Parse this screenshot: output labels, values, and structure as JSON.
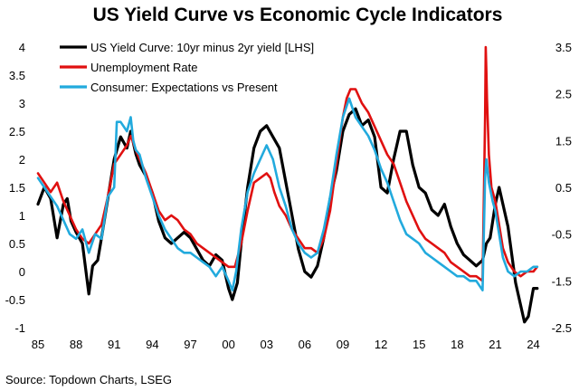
{
  "chart_data": {
    "type": "line",
    "title": "US Yield Curve vs Economic Cycle Indicators",
    "source": "Source: Topdown Charts, LSEG",
    "x_ticks": [
      "85",
      "88",
      "91",
      "94",
      "97",
      "00",
      "03",
      "06",
      "09",
      "12",
      "15",
      "18",
      "21",
      "24"
    ],
    "x_tick_years": [
      1985,
      1988,
      1991,
      1994,
      1997,
      2000,
      2003,
      2006,
      2009,
      2012,
      2015,
      2018,
      2021,
      2024
    ],
    "xlim": [
      1985,
      2024.6
    ],
    "y_left": {
      "ticks": [
        "4",
        "3.5",
        "3",
        "2.5",
        "2",
        "1.5",
        "1",
        "0.5",
        "0",
        "-0.5",
        "-1"
      ],
      "range": [
        -1,
        4
      ]
    },
    "y_right": {
      "ticks": [
        "3.5",
        "2.5",
        "1.5",
        "0.5",
        "-0.5",
        "-1.5",
        "-2.5"
      ],
      "range": [
        -2.5,
        3.5
      ]
    },
    "legend": {
      "placement": "top-left"
    },
    "series": [
      {
        "name": "US Yield Curve: 10yr minus 2yr yield [LHS]",
        "axis": "left",
        "color": "#000000",
        "x": [
          1985,
          1985.5,
          1986,
          1986.5,
          1987,
          1987.3,
          1987.6,
          1988,
          1988.5,
          1989,
          1989.3,
          1989.7,
          1990,
          1990.5,
          1991,
          1991.5,
          1992,
          1992.3,
          1992.7,
          1993,
          1993.5,
          1994,
          1994.5,
          1995,
          1995.5,
          1996,
          1996.5,
          1997,
          1997.5,
          1998,
          1998.5,
          1999,
          1999.5,
          2000,
          2000.3,
          2000.7,
          2001,
          2001.5,
          2002,
          2002.5,
          2003,
          2003.5,
          2004,
          2004.5,
          2005,
          2005.5,
          2006,
          2006.5,
          2007,
          2007.5,
          2008,
          2008.5,
          2009,
          2009.5,
          2010,
          2010.5,
          2011,
          2011.5,
          2012,
          2012.5,
          2013,
          2013.5,
          2014,
          2014.5,
          2015,
          2015.5,
          2016,
          2016.5,
          2017,
          2017.5,
          2018,
          2018.5,
          2019,
          2019.5,
          2020,
          2020.3,
          2020.6,
          2021,
          2021.3,
          2021.6,
          2022,
          2022.3,
          2022.6,
          2023,
          2023.3,
          2023.6,
          2024,
          2024.3
        ],
        "values": [
          1.2,
          1.5,
          1.3,
          0.6,
          1.2,
          1.3,
          0.9,
          0.7,
          0.5,
          -0.4,
          0.1,
          0.2,
          0.6,
          1.3,
          2.0,
          2.4,
          2.2,
          2.5,
          2.1,
          1.9,
          1.7,
          1.4,
          0.9,
          0.6,
          0.5,
          0.6,
          0.7,
          0.6,
          0.4,
          0.2,
          0.1,
          0.3,
          0.2,
          -0.3,
          -0.5,
          -0.2,
          0.5,
          1.5,
          2.2,
          2.5,
          2.6,
          2.4,
          2.2,
          1.6,
          1.0,
          0.4,
          0.0,
          -0.1,
          0.1,
          0.6,
          1.3,
          1.8,
          2.5,
          2.8,
          2.9,
          2.6,
          2.7,
          2.4,
          1.5,
          1.4,
          2.0,
          2.5,
          2.5,
          1.9,
          1.5,
          1.4,
          1.1,
          1.0,
          1.2,
          0.8,
          0.5,
          0.3,
          0.2,
          0.1,
          0.2,
          0.5,
          0.6,
          1.2,
          1.5,
          1.2,
          0.8,
          0.3,
          -0.2,
          -0.6,
          -0.9,
          -0.8,
          -0.3,
          -0.3
        ]
      },
      {
        "name": "Unemployment Rate",
        "axis": "right",
        "color": "#e01010",
        "x": [
          1985,
          1985.5,
          1986,
          1986.5,
          1987,
          1987.5,
          1988,
          1988.5,
          1989,
          1989.5,
          1990,
          1990.5,
          1991,
          1991.5,
          1992,
          1992.3,
          1992.7,
          1993,
          1993.5,
          1994,
          1994.5,
          1995,
          1995.5,
          1996,
          1996.5,
          1997,
          1997.5,
          1998,
          1998.5,
          1999,
          1999.5,
          2000,
          2000.5,
          2001,
          2001.5,
          2002,
          2002.5,
          2003,
          2003.3,
          2003.6,
          2004,
          2004.5,
          2005,
          2005.5,
          2006,
          2006.5,
          2007,
          2007.5,
          2008,
          2008.5,
          2009,
          2009.3,
          2009.6,
          2010,
          2010.5,
          2011,
          2011.5,
          2012,
          2012.5,
          2013,
          2013.5,
          2014,
          2014.5,
          2015,
          2015.5,
          2016,
          2016.5,
          2017,
          2017.5,
          2018,
          2018.5,
          2019,
          2019.5,
          2020,
          2020.2,
          2020.25,
          2020.3,
          2020.35,
          2020.5,
          2020.7,
          2021,
          2021.3,
          2021.6,
          2022,
          2022.5,
          2023,
          2023.5,
          2024,
          2024.3
        ],
        "values": [
          0.8,
          0.6,
          0.4,
          0.6,
          0.2,
          -0.1,
          -0.4,
          -0.6,
          -0.7,
          -0.5,
          -0.3,
          0.3,
          1.0,
          1.2,
          1.4,
          1.6,
          1.3,
          1.1,
          0.8,
          0.4,
          0.0,
          -0.2,
          -0.1,
          -0.2,
          -0.4,
          -0.5,
          -0.7,
          -0.8,
          -0.9,
          -1.0,
          -1.1,
          -1.2,
          -1.2,
          -0.7,
          0.0,
          0.6,
          0.7,
          0.8,
          0.7,
          0.4,
          0.1,
          -0.1,
          -0.4,
          -0.6,
          -0.8,
          -0.8,
          -0.9,
          -0.6,
          0.0,
          1.0,
          2.0,
          2.4,
          2.6,
          2.6,
          2.3,
          2.1,
          1.8,
          1.5,
          1.2,
          1.0,
          0.6,
          0.2,
          -0.1,
          -0.4,
          -0.6,
          -0.7,
          -0.8,
          -0.9,
          -1.1,
          -1.2,
          -1.3,
          -1.4,
          -1.4,
          -1.5,
          2.0,
          3.5,
          3.0,
          2.4,
          1.2,
          0.5,
          0.2,
          -0.3,
          -0.8,
          -1.1,
          -1.3,
          -1.4,
          -1.3,
          -1.3,
          -1.2
        ]
      },
      {
        "name": "Consumer: Expectations vs Present",
        "axis": "right",
        "color": "#22aadd",
        "x": [
          1985,
          1985.5,
          1986,
          1986.5,
          1987,
          1987.5,
          1988,
          1988.5,
          1989,
          1989.5,
          1990,
          1990.5,
          1991,
          1991.2,
          1991.5,
          1992,
          1992.3,
          1992.5,
          1992.7,
          1993,
          1993.5,
          1994,
          1994.5,
          1995,
          1995.5,
          1996,
          1996.5,
          1997,
          1997.5,
          1998,
          1998.5,
          1999,
          1999.5,
          2000,
          2000.3,
          2000.6,
          2001,
          2001.5,
          2002,
          2002.5,
          2003,
          2003.5,
          2004,
          2004.5,
          2005,
          2005.5,
          2006,
          2006.5,
          2007,
          2007.5,
          2008,
          2008.5,
          2009,
          2009.5,
          2010,
          2010.5,
          2011,
          2011.5,
          2012,
          2012.5,
          2013,
          2013.5,
          2014,
          2014.5,
          2015,
          2015.5,
          2016,
          2016.5,
          2017,
          2017.5,
          2018,
          2018.5,
          2019,
          2019.5,
          2020,
          2020.2,
          2020.3,
          2020.5,
          2020.8,
          2021,
          2021.3,
          2021.6,
          2022,
          2022.5,
          2023,
          2023.5,
          2024,
          2024.3
        ],
        "values": [
          0.7,
          0.5,
          0.3,
          0.1,
          -0.2,
          -0.5,
          -0.6,
          -0.4,
          -0.9,
          -0.5,
          -0.6,
          0.3,
          0.5,
          1.9,
          1.9,
          1.7,
          2.0,
          1.5,
          1.3,
          1.2,
          0.7,
          0.3,
          -0.1,
          -0.4,
          -0.6,
          -0.8,
          -0.9,
          -0.9,
          -1.0,
          -1.1,
          -1.2,
          -1.4,
          -1.2,
          -1.5,
          -1.7,
          -1.3,
          -0.4,
          0.4,
          0.8,
          1.1,
          1.4,
          1.1,
          0.5,
          0.1,
          -0.4,
          -0.7,
          -0.9,
          -1.0,
          -0.9,
          -0.4,
          0.3,
          1.2,
          2.0,
          2.4,
          2.0,
          1.8,
          1.6,
          1.3,
          0.9,
          0.6,
          0.2,
          -0.2,
          -0.5,
          -0.6,
          -0.7,
          -0.9,
          -1.0,
          -1.1,
          -1.2,
          -1.3,
          -1.4,
          -1.4,
          -1.5,
          -1.5,
          -1.7,
          0.7,
          1.1,
          0.6,
          0.2,
          0.0,
          -0.5,
          -1.0,
          -1.3,
          -1.4,
          -1.3,
          -1.3,
          -1.2,
          -1.2
        ]
      }
    ]
  }
}
